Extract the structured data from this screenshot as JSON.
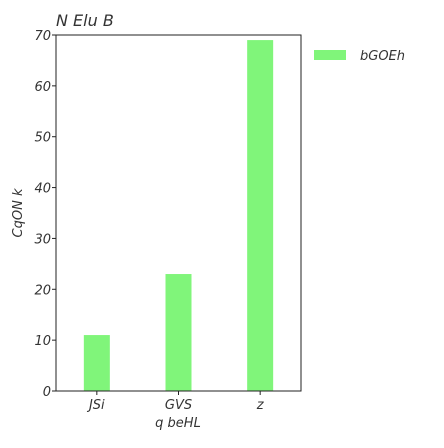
{
  "chart_data": {
    "type": "bar",
    "title": "N  Elu B",
    "xlabel": "q beHL",
    "ylabel": "CqON k",
    "categories": [
      "JSi",
      "GVS",
      "z"
    ],
    "series": [
      {
        "name": "bGOEh",
        "values": [
          11,
          23,
          69
        ],
        "color": "#80f57a"
      }
    ],
    "ylim": [
      0,
      70
    ],
    "yticks": [
      0,
      10,
      20,
      30,
      40,
      50,
      60,
      70
    ],
    "grid": false,
    "legend_position": "top-right, outside plot"
  }
}
